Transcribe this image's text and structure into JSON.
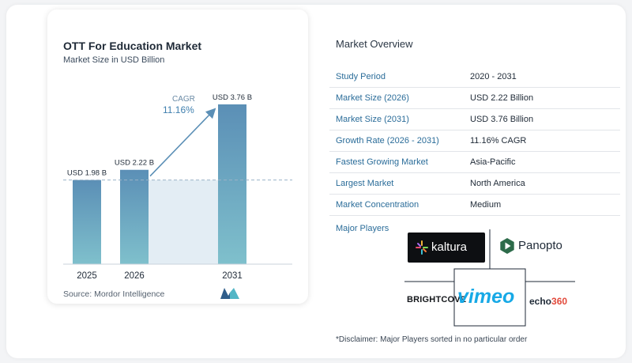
{
  "chart": {
    "title": "OTT For Education Market",
    "subtitle": "Market Size in USD Billion",
    "source": "Source:  Mordor Intelligence",
    "cagr_label": "CAGR",
    "cagr_value": "11.16%"
  },
  "chart_data": {
    "type": "bar",
    "categories": [
      "2025",
      "2026",
      "2031"
    ],
    "values": [
      1.98,
      2.22,
      3.76
    ],
    "data_labels": [
      "USD 1.98 B",
      "USD 2.22 B",
      "USD 3.76 B"
    ],
    "title": "OTT For Education Market",
    "subtitle": "Market Size in USD Billion",
    "annotation": "CAGR 11.16%",
    "grid": false
  },
  "overview": {
    "title": "Market Overview",
    "rows": [
      {
        "label": "Study Period",
        "value": "2020 - 2031"
      },
      {
        "label": "Market Size (2026)",
        "value": "USD 2.22 Billion"
      },
      {
        "label": "Market Size (2031)",
        "value": "USD 3.76 Billion"
      },
      {
        "label": "Growth Rate (2026 - 2031)",
        "value": "11.16% CAGR"
      },
      {
        "label": "Fastest Growing Market",
        "value": "Asia-Pacific"
      },
      {
        "label": "Largest Market",
        "value": "North America"
      },
      {
        "label": "Market Concentration",
        "value": "Medium"
      }
    ],
    "players_label": "Major Players",
    "players": {
      "kaltura": "kaltura",
      "panopto": "Panopto",
      "brightcove": "BRIGHTCOVE",
      "vimeo": "vimeo",
      "echo_prefix": "echo",
      "echo_suffix": "360"
    },
    "disclaimer": "*Disclaimer: Major Players sorted in no particular order"
  },
  "colors": {
    "bar_top": "#5b8fb6",
    "bar_bottom": "#7fc0cc",
    "band": "#e3edf4",
    "arrow": "#5b8fb6",
    "accent_text": "#2a6c99"
  }
}
